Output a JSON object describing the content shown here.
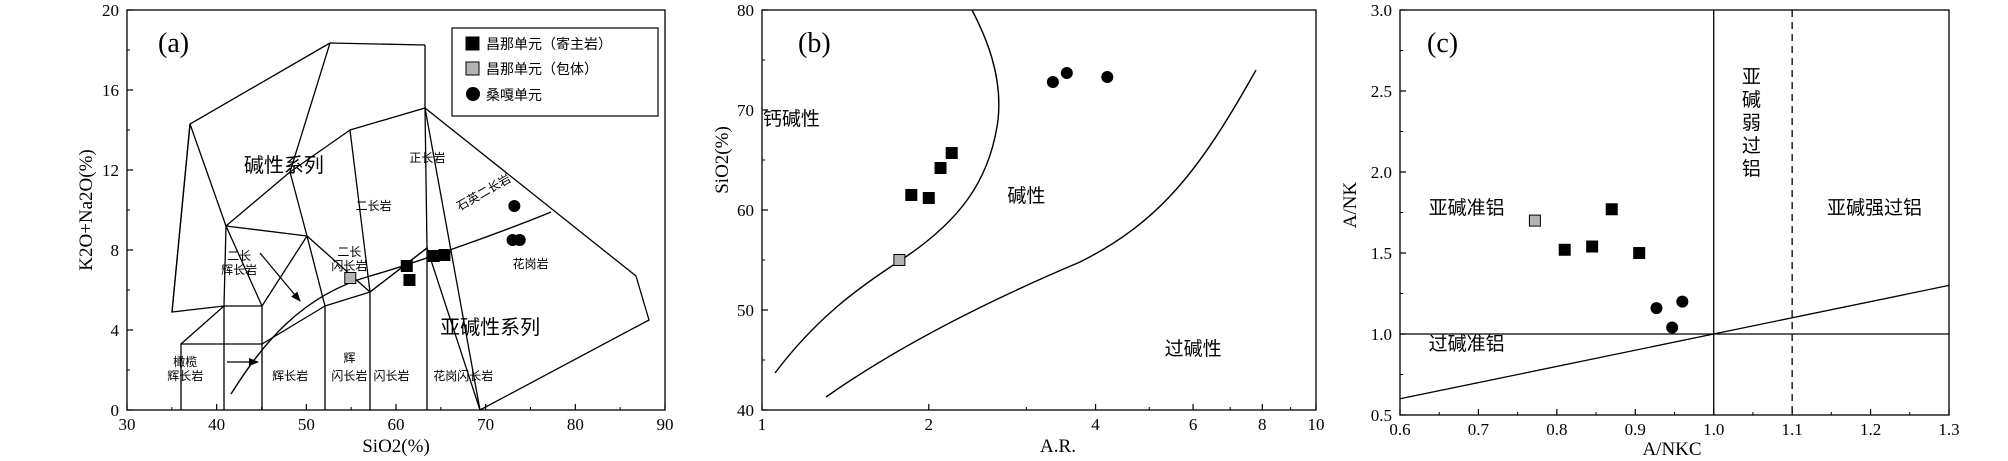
{
  "chart_data": [
    {
      "type": "scatter",
      "panel_label": "(a)",
      "xlabel": "SiO2(%)",
      "ylabel": "K2O+Na2O(%)",
      "xlim": [
        30,
        90
      ],
      "ylim": [
        0,
        20
      ],
      "x_ticks": [
        "30",
        "40",
        "50",
        "60",
        "70",
        "80",
        "90"
      ],
      "y_ticks": [
        "0",
        "4",
        "8",
        "12",
        "16",
        "20"
      ],
      "legend": {
        "placement": "top-right",
        "entries": [
          {
            "label": "昌那单元（寄主岩）",
            "marker": "square",
            "color": "#000000"
          },
          {
            "label": "昌那单元（包体）",
            "marker": "square",
            "color": "#b3b3b3"
          },
          {
            "label": "桑嘎单元",
            "marker": "circle",
            "color": "#000000"
          }
        ]
      },
      "field_labels": [
        {
          "text": "碱性系列",
          "x": 47.5,
          "y": 11.9
        },
        {
          "text": "正长岩",
          "x": 63.5,
          "y": 12.4
        },
        {
          "text": "石英二长岩",
          "x": 70,
          "y": 10.7
        },
        {
          "text": "二长岩",
          "x": 57.5,
          "y": 10
        },
        {
          "text": "二长",
          "x": 42.5,
          "y": 7.5
        },
        {
          "text": "辉长岩",
          "x": 42.5,
          "y": 6.8
        },
        {
          "text": "二长",
          "x": 54.8,
          "y": 7.7
        },
        {
          "text": "闪长岩",
          "x": 54.8,
          "y": 7.0
        },
        {
          "text": "花岗岩",
          "x": 75,
          "y": 7.1
        },
        {
          "text": "亚碱性系列",
          "x": 70.5,
          "y": 3.8
        },
        {
          "text": "橄榄",
          "x": 36.5,
          "y": 2.2
        },
        {
          "text": "辉长岩",
          "x": 36.5,
          "y": 1.5
        },
        {
          "text": "辉长岩",
          "x": 48.2,
          "y": 1.5
        },
        {
          "text": "辉",
          "x": 54.8,
          "y": 2.4
        },
        {
          "text": "闪长岩",
          "x": 54.8,
          "y": 1.5
        },
        {
          "text": "闪长岩",
          "x": 59.5,
          "y": 1.5
        },
        {
          "text": "花岗闪长岩",
          "x": 67.5,
          "y": 1.5
        }
      ],
      "series": [
        {
          "name": "昌那单元（寄主岩）",
          "x": [
            61.2,
            61.5,
            64.2,
            65.4
          ],
          "y": [
            7.2,
            6.5,
            7.7,
            7.75
          ]
        },
        {
          "name": "昌那单元（包体）",
          "x": [
            54.9
          ],
          "y": [
            6.6
          ]
        },
        {
          "name": "桑嘎单元",
          "x": [
            73.2,
            73.0,
            73.8
          ],
          "y": [
            10.2,
            8.5,
            8.5
          ]
        }
      ]
    },
    {
      "type": "scatter",
      "panel_label": "(b)",
      "xlabel": "A.R.",
      "ylabel": "SiO2(%)",
      "x_scale": "log",
      "xlim": [
        1,
        10
      ],
      "ylim": [
        40,
        80
      ],
      "x_ticks": [
        "1",
        "2",
        "4",
        "6",
        "8",
        "10"
      ],
      "y_ticks": [
        "40",
        "50",
        "60",
        "70",
        "80"
      ],
      "field_labels": [
        {
          "text": "钙碱性",
          "x": 1.13,
          "y": 68.5
        },
        {
          "text": "碱性",
          "x": 3.0,
          "y": 60.8
        },
        {
          "text": "过碱性",
          "x": 6.0,
          "y": 45.5
        }
      ],
      "series": [
        {
          "name": "昌那单元（寄主岩）",
          "x": [
            1.86,
            2.0,
            2.1,
            2.2
          ],
          "y": [
            61.5,
            61.2,
            64.2,
            65.7
          ]
        },
        {
          "name": "昌那单元（包体）",
          "x": [
            1.77
          ],
          "y": [
            55.0
          ]
        },
        {
          "name": "桑嘎单元",
          "x": [
            3.35,
            3.55,
            4.2
          ],
          "y": [
            72.8,
            73.7,
            73.3
          ]
        }
      ]
    },
    {
      "type": "scatter",
      "panel_label": "(c)",
      "xlabel": "A/NKC",
      "ylabel": "A/NK",
      "xlim": [
        0.6,
        1.3
      ],
      "ylim": [
        0.5,
        3.0
      ],
      "x_ticks": [
        "0.6",
        "0.7",
        "0.8",
        "0.9",
        "1.0",
        "1.1",
        "1.2",
        "1.3"
      ],
      "y_ticks": [
        "0.5",
        "1.0",
        "1.5",
        "2.0",
        "2.5",
        "3.0"
      ],
      "field_labels": [
        {
          "text": "亚碱准铝",
          "x": 0.685,
          "y": 1.74
        },
        {
          "text": "亚碱强过铝",
          "x": 1.205,
          "y": 1.74
        },
        {
          "text": "过碱准铝",
          "x": 0.685,
          "y": 0.9
        },
        {
          "text": "亚碱弱过铝",
          "x": 1.048,
          "y": 2.55,
          "vertical": true
        }
      ],
      "series": [
        {
          "name": "昌那单元（寄主岩）",
          "x": [
            0.81,
            0.845,
            0.87,
            0.905
          ],
          "y": [
            1.52,
            1.54,
            1.77,
            1.5
          ]
        },
        {
          "name": "昌那单元（包体）",
          "x": [
            0.772
          ],
          "y": [
            1.7
          ]
        },
        {
          "name": "桑嘎单元",
          "x": [
            0.927,
            0.947,
            0.96
          ],
          "y": [
            1.16,
            1.04,
            1.2
          ]
        }
      ]
    }
  ]
}
